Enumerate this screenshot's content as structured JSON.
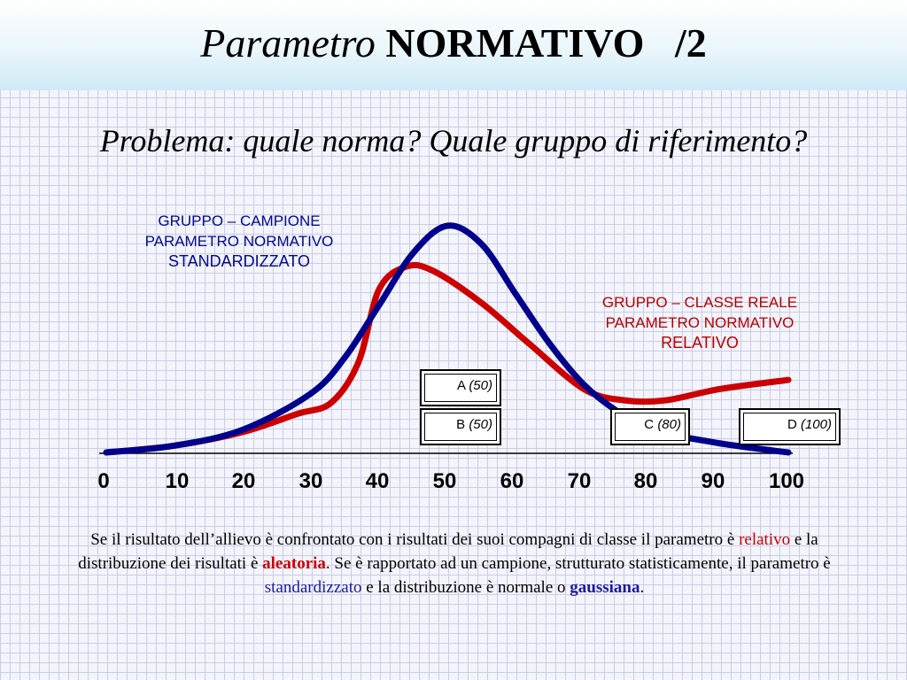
{
  "title": {
    "italic": "Parametro",
    "bold": "NORMATIVO",
    "suffix": "/2"
  },
  "subtitle": "Problema: quale norma? Quale gruppo di riferimento?",
  "label_blue": {
    "line1": "GRUPPO – CAMPIONE",
    "line2": "PARAMETRO NORMATIVO",
    "line3": "STANDARDIZZATO"
  },
  "label_red": {
    "line1": "GRUPPO – CLASSE REALE",
    "line2": "PARAMETRO NORMATIVO",
    "line3": "RELATIVO"
  },
  "boxes": [
    {
      "letter": "A",
      "value": "(50)"
    },
    {
      "letter": "B",
      "value": "(50)"
    },
    {
      "letter": "C",
      "value": "(80)"
    },
    {
      "letter": "D",
      "value": "(100)"
    }
  ],
  "x_ticks": [
    "0",
    "10",
    "20",
    "30",
    "40",
    "50",
    "60",
    "70",
    "80",
    "90",
    "100"
  ],
  "paragraph": {
    "p1": "Se il risultato dell’allievo è confrontato con i risultati dei suoi compagni di classe il parametro è ",
    "w1": "relativo",
    "p2": " e la distribuzione dei risultati è ",
    "w2": "aleatoria",
    "p3": ". Se è rapportato ad un campione, strutturato statisticamente, il parametro è ",
    "w3": "standardizzato",
    "p4": " e la distribuzione è normale o ",
    "w4": "gaussiana",
    "p5": "."
  },
  "chart_data": {
    "type": "line",
    "xlim": [
      0,
      100
    ],
    "series": [
      {
        "color": "#00008c",
        "x": [
          0,
          10,
          20,
          30,
          35,
          40,
          45,
          50,
          55,
          60,
          65,
          70,
          75,
          80,
          90,
          100
        ],
        "y": [
          0,
          0.03,
          0.1,
          0.26,
          0.42,
          0.65,
          0.88,
          1.0,
          0.92,
          0.7,
          0.48,
          0.3,
          0.18,
          0.1,
          0.04,
          0.0
        ]
      },
      {
        "color": "#cc0000",
        "x": [
          0,
          10,
          20,
          28,
          33,
          37,
          40,
          44,
          48,
          55,
          62,
          70,
          76,
          82,
          90,
          100
        ],
        "y": [
          0,
          0.03,
          0.09,
          0.17,
          0.22,
          0.4,
          0.72,
          0.82,
          0.8,
          0.66,
          0.48,
          0.28,
          0.23,
          0.23,
          0.28,
          0.32
        ]
      }
    ]
  },
  "colors": {
    "blue_curve": "#00008c",
    "red_curve": "#cc0000",
    "header_bg": "#d9eef8"
  }
}
